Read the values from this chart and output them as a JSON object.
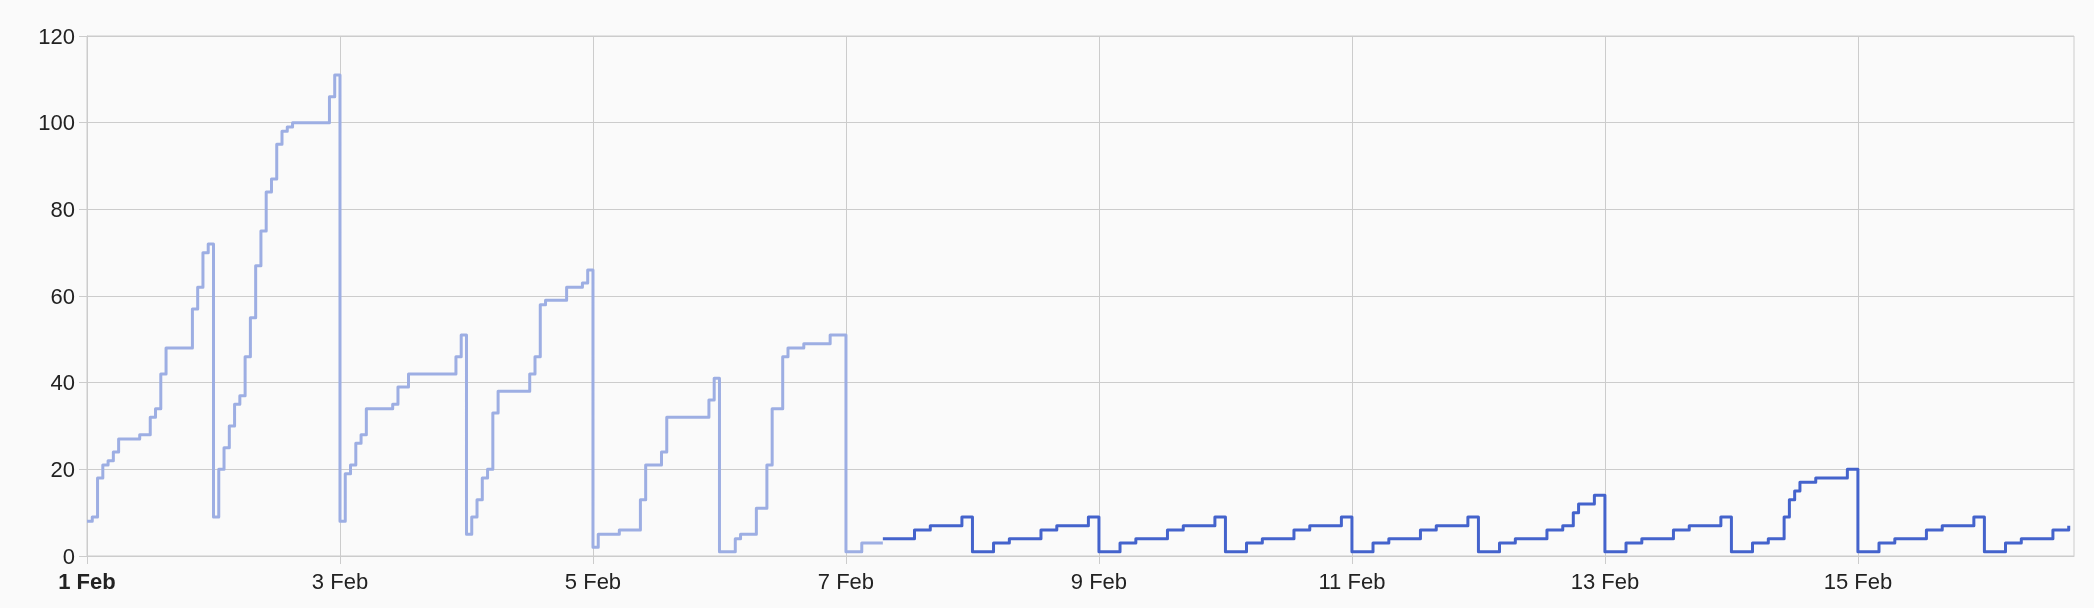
{
  "chart_data": {
    "type": "step",
    "series": [
      {
        "color": "#9daee3",
        "x": [
          "--02-01T00:00",
          "--02-01T01:00",
          "--02-01T02:00",
          "--02-01T03:00",
          "--02-01T04:00",
          "--02-01T05:00",
          "--02-01T06:00",
          "--02-01T10:00",
          "--02-01T12:00",
          "--02-01T13:00",
          "--02-01T14:00",
          "--02-01T15:00",
          "--02-01T20:00",
          "--02-01T21:00",
          "--02-01T22:00",
          "--02-01T23:00",
          "--02-02T00:00",
          "--02-02T01:00",
          "--02-02T02:00",
          "--02-02T03:00",
          "--02-02T04:00",
          "--02-02T05:00",
          "--02-02T06:00",
          "--02-02T07:00",
          "--02-02T08:00",
          "--02-02T09:00",
          "--02-02T10:00",
          "--02-02T11:00",
          "--02-02T12:00",
          "--02-02T13:00",
          "--02-02T14:00",
          "--02-02T15:00",
          "--02-02T22:00",
          "--02-02T23:00",
          "--02-03T00:00",
          "--02-03T01:00",
          "--02-03T02:00",
          "--02-03T03:00",
          "--02-03T04:00",
          "--02-03T05:00",
          "--02-03T10:00",
          "--02-03T11:00",
          "--02-03T13:00",
          "--02-03T22:00",
          "--02-03T23:00",
          "--02-04T00:00",
          "--02-04T01:00",
          "--02-04T02:00",
          "--02-04T03:00",
          "--02-04T04:00",
          "--02-04T05:00",
          "--02-04T06:00",
          "--02-04T12:00",
          "--02-04T13:00",
          "--02-04T14:00",
          "--02-04T15:00",
          "--02-04T19:00",
          "--02-04T22:00",
          "--02-04T23:00",
          "--02-05T00:00",
          "--02-05T01:00",
          "--02-05T05:00",
          "--02-05T09:00",
          "--02-05T10:00",
          "--02-05T13:00",
          "--02-05T14:00",
          "--02-05T22:00",
          "--02-05T23:00",
          "--02-06T00:00",
          "--02-06T03:00",
          "--02-06T04:00",
          "--02-06T07:00",
          "--02-06T09:00",
          "--02-06T10:00",
          "--02-06T12:00",
          "--02-06T13:00",
          "--02-06T16:00",
          "--02-06T21:00",
          "--02-07T00:00",
          "--02-07T03:00",
          "--02-07T07:00"
        ],
        "values": [
          8,
          9,
          18,
          21,
          22,
          24,
          27,
          28,
          32,
          34,
          42,
          48,
          57,
          62,
          70,
          72,
          9,
          20,
          25,
          30,
          35,
          37,
          46,
          55,
          67,
          75,
          84,
          87,
          95,
          98,
          99,
          100,
          106,
          111,
          8,
          19,
          21,
          26,
          28,
          34,
          35,
          39,
          42,
          46,
          51,
          5,
          9,
          13,
          18,
          20,
          33,
          38,
          42,
          46,
          58,
          59,
          62,
          63,
          66,
          2,
          5,
          6,
          13,
          21,
          24,
          32,
          36,
          41,
          1,
          4,
          5,
          11,
          21,
          34,
          46,
          48,
          49,
          51,
          1,
          3,
          3
        ]
      },
      {
        "color": "#4463cc",
        "x": [
          "--02-07T07:00",
          "--02-07T13:00",
          "--02-07T16:00",
          "--02-07T22:00",
          "--02-08T00:00",
          "--02-08T04:00",
          "--02-08T07:00",
          "--02-08T13:00",
          "--02-08T16:00",
          "--02-08T22:00",
          "--02-09T00:00",
          "--02-09T04:00",
          "--02-09T07:00",
          "--02-09T13:00",
          "--02-09T16:00",
          "--02-09T22:00",
          "--02-10T00:00",
          "--02-10T04:00",
          "--02-10T07:00",
          "--02-10T13:00",
          "--02-10T16:00",
          "--02-10T22:00",
          "--02-11T00:00",
          "--02-11T04:00",
          "--02-11T07:00",
          "--02-11T13:00",
          "--02-11T16:00",
          "--02-11T22:00",
          "--02-12T00:00",
          "--02-12T04:00",
          "--02-12T07:00",
          "--02-12T13:00",
          "--02-12T16:00",
          "--02-12T18:00",
          "--02-12T19:00",
          "--02-12T22:00",
          "--02-13T00:00",
          "--02-13T04:00",
          "--02-13T07:00",
          "--02-13T13:00",
          "--02-13T16:00",
          "--02-13T22:00",
          "--02-14T00:00",
          "--02-14T04:00",
          "--02-14T07:00",
          "--02-14T10:00",
          "--02-14T11:00",
          "--02-14T12:00",
          "--02-14T13:00",
          "--02-14T16:00",
          "--02-14T22:00",
          "--02-15T00:00",
          "--02-15T04:00",
          "--02-15T07:00",
          "--02-15T13:00",
          "--02-15T16:00",
          "--02-15T22:00",
          "--02-16T00:00",
          "--02-16T04:00",
          "--02-16T07:00",
          "--02-16T13:00",
          "--02-16T16:00"
        ],
        "values": [
          4,
          6,
          7,
          9,
          1,
          3,
          4,
          6,
          7,
          9,
          1,
          3,
          4,
          6,
          7,
          9,
          1,
          3,
          4,
          6,
          7,
          9,
          1,
          3,
          4,
          6,
          7,
          9,
          1,
          3,
          4,
          6,
          7,
          10,
          12,
          14,
          1,
          3,
          4,
          6,
          7,
          9,
          1,
          3,
          4,
          9,
          13,
          15,
          17,
          18,
          20,
          1,
          3,
          4,
          6,
          7,
          9,
          1,
          3,
          4,
          6,
          7
        ]
      }
    ],
    "xlim": [
      "--02-01",
      "--02-16T17:00"
    ],
    "xticks": [
      {
        "value": "--02-01",
        "label": "1 Feb"
      },
      {
        "value": "--02-03",
        "label": "3 Feb"
      },
      {
        "value": "--02-05",
        "label": "5 Feb"
      },
      {
        "value": "--02-07",
        "label": "7 Feb"
      },
      {
        "value": "--02-09",
        "label": "9 Feb"
      },
      {
        "value": "--02-11",
        "label": "11 Feb"
      },
      {
        "value": "--02-13",
        "label": "13 Feb"
      },
      {
        "value": "--02-15",
        "label": "15 Feb"
      }
    ],
    "ylim": [
      0,
      120
    ],
    "yticks": [
      0,
      20,
      40,
      60,
      80,
      100,
      120
    ],
    "grid": true,
    "marker": "none",
    "line_style": "solid"
  }
}
